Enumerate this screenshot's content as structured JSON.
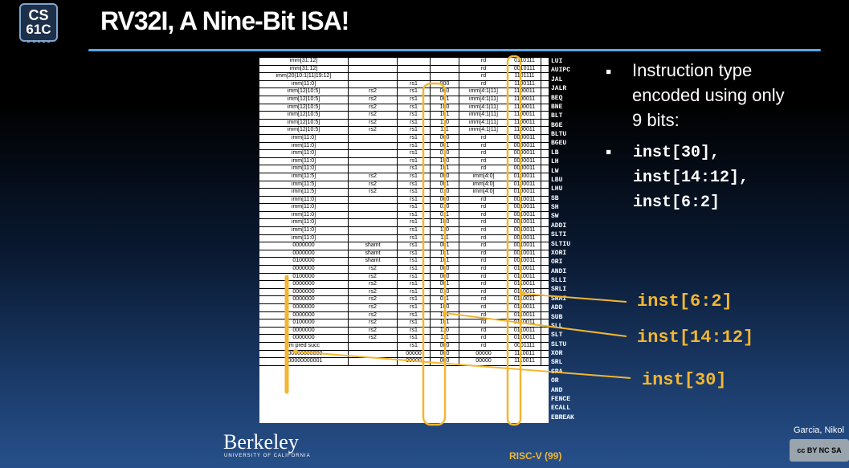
{
  "logo": {
    "line1": "CS",
    "line2": "61C"
  },
  "title": "RV32I, A Nine-Bit ISA!",
  "bullets": {
    "b1_lines": [
      "Instruction type",
      "encoded using only",
      "9 bits:"
    ],
    "b2_lines": [
      "inst[30],",
      "inst[14:12],",
      "inst[6:2]"
    ]
  },
  "callouts": {
    "c1": "inst[6:2]",
    "c2": "inst[14:12]",
    "c3": "inst[30]"
  },
  "branding": {
    "berkeley": "Berkeley",
    "berkeley_sub": "UNIVERSITY OF CALIFORNIA",
    "footer": "RISC-V (99)",
    "author": "Garcia, Nikol",
    "cc": "cc BY NC SA"
  },
  "table": {
    "mnemonics": [
      "LUI",
      "AUIPC",
      "JAL",
      "JALR",
      "BEQ",
      "BNE",
      "BLT",
      "BGE",
      "BLTU",
      "BGEU",
      "LB",
      "LH",
      "LW",
      "LBU",
      "LHU",
      "SB",
      "SH",
      "SW",
      "ADDI",
      "SLTI",
      "SLTIU",
      "XORI",
      "ORI",
      "ANDI",
      "SLLI",
      "SRLI",
      "SRAI",
      "ADD",
      "SUB",
      "SLL",
      "SLT",
      "SLTU",
      "XOR",
      "SRL",
      "SRA",
      "OR",
      "AND",
      "FENCE",
      "ECALL",
      "EBREAK"
    ],
    "rows": [
      [
        "imm[31:12]",
        "",
        "",
        "",
        "rd",
        "0110111"
      ],
      [
        "imm[31:12]",
        "",
        "",
        "",
        "rd",
        "0010111"
      ],
      [
        "imm[20|10:1|11|19:12]",
        "",
        "",
        "",
        "rd",
        "1101111"
      ],
      [
        "imm[11:0]",
        "",
        "rs1",
        "000",
        "rd",
        "1100111"
      ],
      [
        "imm[12|10:5]",
        "rs2",
        "rs1",
        "000",
        "imm[4:1|11]",
        "1100011"
      ],
      [
        "imm[12|10:5]",
        "rs2",
        "rs1",
        "001",
        "imm[4:1|11]",
        "1100011"
      ],
      [
        "imm[12|10:5]",
        "rs2",
        "rs1",
        "100",
        "imm[4:1|11]",
        "1100011"
      ],
      [
        "imm[12|10:5]",
        "rs2",
        "rs1",
        "101",
        "imm[4:1|11]",
        "1100011"
      ],
      [
        "imm[12|10:5]",
        "rs2",
        "rs1",
        "110",
        "imm[4:1|11]",
        "1100011"
      ],
      [
        "imm[12|10:5]",
        "rs2",
        "rs1",
        "111",
        "imm[4:1|11]",
        "1100011"
      ],
      [
        "imm[11:0]",
        "",
        "rs1",
        "000",
        "rd",
        "0000011"
      ],
      [
        "imm[11:0]",
        "",
        "rs1",
        "001",
        "rd",
        "0000011"
      ],
      [
        "imm[11:0]",
        "",
        "rs1",
        "010",
        "rd",
        "0000011"
      ],
      [
        "imm[11:0]",
        "",
        "rs1",
        "100",
        "rd",
        "0000011"
      ],
      [
        "imm[11:0]",
        "",
        "rs1",
        "101",
        "rd",
        "0000011"
      ],
      [
        "imm[11:5]",
        "rs2",
        "rs1",
        "000",
        "imm[4:0]",
        "0100011"
      ],
      [
        "imm[11:5]",
        "rs2",
        "rs1",
        "001",
        "imm[4:0]",
        "0100011"
      ],
      [
        "imm[11:5]",
        "rs2",
        "rs1",
        "010",
        "imm[4:0]",
        "0100011"
      ],
      [
        "imm[11:0]",
        "",
        "rs1",
        "000",
        "rd",
        "0010011"
      ],
      [
        "imm[11:0]",
        "",
        "rs1",
        "010",
        "rd",
        "0010011"
      ],
      [
        "imm[11:0]",
        "",
        "rs1",
        "011",
        "rd",
        "0010011"
      ],
      [
        "imm[11:0]",
        "",
        "rs1",
        "100",
        "rd",
        "0010011"
      ],
      [
        "imm[11:0]",
        "",
        "rs1",
        "110",
        "rd",
        "0010011"
      ],
      [
        "imm[11:0]",
        "",
        "rs1",
        "111",
        "rd",
        "0010011"
      ],
      [
        "0000000",
        "shamt",
        "rs1",
        "001",
        "rd",
        "0010011"
      ],
      [
        "0000000",
        "shamt",
        "rs1",
        "101",
        "rd",
        "0010011"
      ],
      [
        "0100000",
        "shamt",
        "rs1",
        "101",
        "rd",
        "0010011"
      ],
      [
        "0000000",
        "rs2",
        "rs1",
        "000",
        "rd",
        "0110011"
      ],
      [
        "0100000",
        "rs2",
        "rs1",
        "000",
        "rd",
        "0110011"
      ],
      [
        "0000000",
        "rs2",
        "rs1",
        "001",
        "rd",
        "0110011"
      ],
      [
        "0000000",
        "rs2",
        "rs1",
        "010",
        "rd",
        "0110011"
      ],
      [
        "0000000",
        "rs2",
        "rs1",
        "011",
        "rd",
        "0110011"
      ],
      [
        "0000000",
        "rs2",
        "rs1",
        "100",
        "rd",
        "0110011"
      ],
      [
        "0000000",
        "rs2",
        "rs1",
        "101",
        "rd",
        "0110011"
      ],
      [
        "0100000",
        "rs2",
        "rs1",
        "101",
        "rd",
        "0110011"
      ],
      [
        "0000000",
        "rs2",
        "rs1",
        "110",
        "rd",
        "0110011"
      ],
      [
        "0000000",
        "rs2",
        "rs1",
        "111",
        "rd",
        "0110011"
      ],
      [
        "fm   pred   succ",
        "",
        "rs1",
        "000",
        "rd",
        "0001111"
      ],
      [
        "000000000000",
        "",
        "00000",
        "000",
        "00000",
        "1110011"
      ],
      [
        "000000000001",
        "",
        "00000",
        "000",
        "00000",
        "1110011"
      ]
    ]
  }
}
